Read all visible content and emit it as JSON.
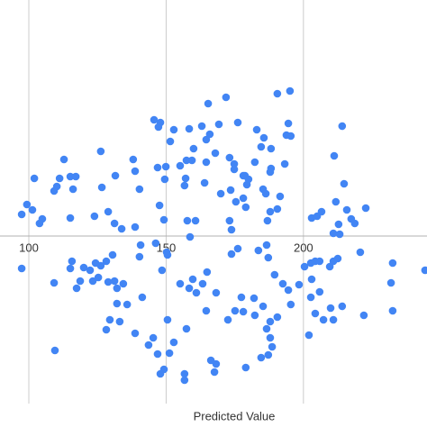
{
  "chart_data": {
    "type": "scatter",
    "x_label": "Predicted Value",
    "color": "#4285f4",
    "xlim": [
      89.5,
      245.0
    ],
    "ylim": [
      -46.5,
      65.5
    ],
    "xticks": [
      100,
      150,
      200
    ],
    "grid": true,
    "x": [
      195.1,
      190.5,
      171.8,
      165.3,
      145.6,
      147.9,
      147.2,
      152.8,
      169.2,
      163.0,
      176.1,
      158.4,
      194.5,
      214.1,
      183.0,
      165.9,
      193.8,
      195.4,
      185.6,
      151.5,
      164.6,
      184.6,
      126.2,
      138.0,
      160.0,
      173.1,
      188.2,
      112.8,
      157.4,
      159.4,
      167.9,
      164.6,
      182.3,
      174.8,
      149.9,
      138.7,
      146.9,
      155.1,
      174.8,
      188.2,
      193.2,
      178.7,
      102.0,
      111.2,
      115.1,
      117.1,
      131.5,
      149.5,
      157.1,
      187.9,
      178.1,
      180.0,
      110.2,
      109.2,
      116.1,
      126.6,
      140.3,
      156.7,
      164.0,
      185.3,
      186.3,
      173.5,
      179.4,
      211.2,
      214.8,
      99.3,
      101.3,
      104.9,
      103.9,
      97.4,
      115.1,
      123.9,
      131.2,
      133.8,
      138.7,
      128.9,
      147.6,
      149.2,
      157.7,
      169.9,
      175.4,
      178.1,
      173.1,
      179.0,
      173.8,
      186.9,
      187.9,
      190.5,
      191.5,
      206.6,
      205.0,
      203.0,
      211.8,
      215.8,
      217.4,
      222.7,
      212.8,
      210.9,
      213.2,
      218.7,
      160.7,
      97.4,
      115.7,
      115.1,
      109.2,
      120.0,
      122.3,
      124.3,
      123.3,
      125.3,
      118.7,
      117.4,
      126.2,
      128.2,
      130.5,
      128.9,
      131.2,
      132.1,
      134.4,
      140.3,
      140.7,
      146.2,
      150.2,
      158.7,
      150.5,
      148.5,
      155.1,
      158.4,
      161.0,
      163.3,
      159.7,
      164.9,
      168.2,
      173.8,
      176.1,
      177.4,
      183.6,
      186.6,
      187.2,
      189.5,
      192.5,
      200.4,
      202.7,
      204.3,
      205.9,
      203.0,
      205.9,
      202.7,
      209.6,
      210.9,
      212.5,
      220.7,
      232.5,
      231.9,
      244.3,
      232.5,
      222.0,
      214.1,
      209.9,
      210.9,
      204.3,
      190.5,
      187.9,
      185.3,
      182.3,
      178.1,
      175.1,
      172.5,
      164.6,
      157.4,
      152.8,
      150.5,
      151.2,
      146.9,
      149.2,
      147.9,
      141.3,
      138.7,
      132.1,
      129.5,
      133.1,
      128.2,
      135.8,
      143.6,
      145.3,
      109.5,
      156.7,
      156.7,
      166.3,
      168.2,
      167.6,
      179.0,
      184.6,
      187.2,
      188.6,
      187.9,
      186.6,
      194.5,
      195.4,
      198.4,
      202.0,
      207.3,
      182.0
    ],
    "values": [
      40.25,
      39.5,
      38.5,
      36.75,
      32.25,
      31.5,
      30.25,
      29.5,
      31,
      30.5,
      31.5,
      29.75,
      31.25,
      30.5,
      29.5,
      28.25,
      28,
      27.75,
      27.25,
      26.25,
      26.75,
      24.75,
      23.5,
      21.25,
      24.25,
      21.75,
      24.25,
      21.25,
      21,
      21,
      23,
      20.5,
      20.5,
      20,
      19.25,
      18,
      19,
      19.5,
      18.5,
      18.75,
      20,
      16.75,
      16,
      16,
      16.5,
      16.5,
      16.75,
      15.75,
      16,
      17.75,
      16.75,
      15.75,
      13.75,
      12.5,
      13,
      13.5,
      13,
      14,
      14.75,
      13,
      11.75,
      12.75,
      14.25,
      22.25,
      14.5,
      8.75,
      7.25,
      4.75,
      3.5,
      6,
      5,
      5.5,
      3.5,
      2,
      2.5,
      6.75,
      8.5,
      4.5,
      4.25,
      11.75,
      9.5,
      10.5,
      4.25,
      8,
      1.75,
      4.25,
      6.75,
      7.5,
      11,
      6.75,
      5.5,
      5,
      9.5,
      7.25,
      4.75,
      7.75,
      3.25,
      0.75,
      0.5,
      3.5,
      4.25,
      -9,
      -7,
      -9,
      -13,
      -8.75,
      -9.5,
      -7.5,
      -12.5,
      -11.5,
      -12.5,
      -14.5,
      -8.25,
      -7,
      -5.25,
      -12.75,
      -12.5,
      -14.5,
      -13.25,
      -5.75,
      -2.5,
      -2,
      -4.5,
      -0.25,
      -5.25,
      -9.5,
      -13.25,
      -14.5,
      -15.75,
      -13.25,
      -12,
      -10,
      -15.75,
      -5,
      -3.5,
      -17,
      -4,
      -2.5,
      -6,
      -10.75,
      -13.25,
      -8.5,
      -7.5,
      -7,
      -7,
      -12,
      -15.5,
      -17,
      -8.5,
      -7,
      -6.25,
      -4.5,
      -7.5,
      -13,
      -9.5,
      -20.75,
      -22,
      -19.5,
      -20,
      -23.25,
      -21.5,
      -22.5,
      -23.75,
      -19.5,
      -22,
      -21,
      -20.75,
      -23.25,
      -20.75,
      -25.75,
      -29.5,
      -23.25,
      -32.5,
      -32.75,
      -37,
      -38.25,
      -17,
      -27,
      -18.75,
      -23.25,
      -23.75,
      -26,
      -19,
      -30.25,
      -28.25,
      -31.75,
      -38.25,
      -40,
      -34.5,
      -35.5,
      -37.75,
      -36.5,
      -33.75,
      -33,
      -30.75,
      -28.25,
      -25.75,
      -15,
      -19,
      -13.5,
      -27.5,
      -23.25,
      -17.25
    ]
  }
}
